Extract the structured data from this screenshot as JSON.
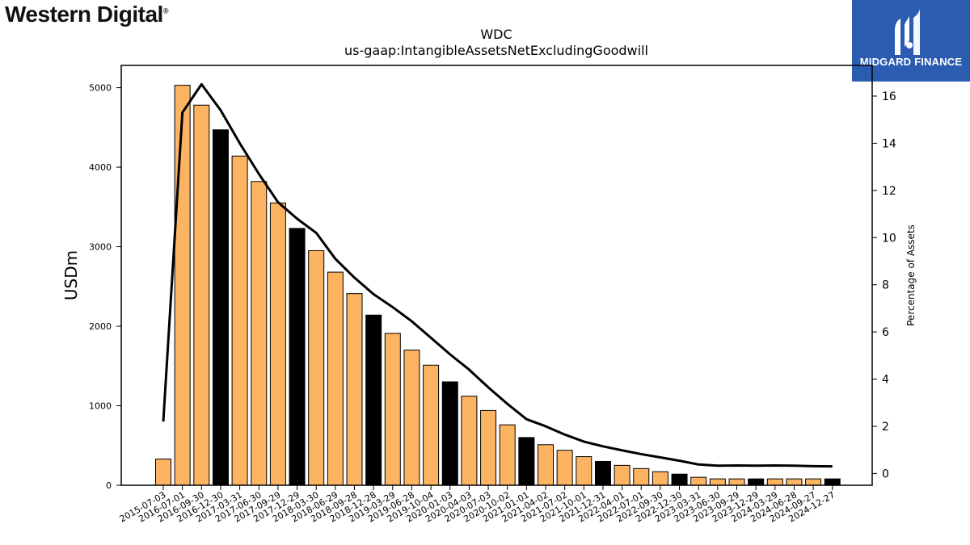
{
  "brand": {
    "name": "Western Digital",
    "reg": "®"
  },
  "badge": {
    "label": "MIDGARD FINANCE"
  },
  "chart_data": {
    "type": "bar",
    "title": "WDC",
    "subtitle": "us-gaap:IntangibleAssetsNetExcludingGoodwill",
    "ylabel": "USDm",
    "y2label": "Percentage of Assets",
    "ylim": [
      0,
      5280
    ],
    "y2lim": [
      -0.5,
      17.3
    ],
    "yticks": [
      0,
      1000,
      2000,
      3000,
      4000,
      5000
    ],
    "y2ticks": [
      0,
      2,
      4,
      6,
      8,
      10,
      12,
      14,
      16
    ],
    "colors": {
      "bar": "#fdb462",
      "bar_highlight": "#000000",
      "line": "#000000"
    },
    "categories": [
      "2015-07-03",
      "2016-07-01",
      "2016-09-30",
      "2016-12-30",
      "2017-03-31",
      "2017-06-30",
      "2017-09-29",
      "2017-12-29",
      "2018-03-30",
      "2018-06-29",
      "2018-09-28",
      "2018-12-28",
      "2019-03-29",
      "2019-06-28",
      "2019-10-04",
      "2020-01-03",
      "2020-04-03",
      "2020-07-03",
      "2020-10-02",
      "2021-01-01",
      "2021-04-02",
      "2021-07-02",
      "2021-10-01",
      "2021-12-31",
      "2022-04-01",
      "2022-07-01",
      "2022-09-30",
      "2022-12-30",
      "2023-03-31",
      "2023-06-30",
      "2023-09-29",
      "2023-12-29",
      "2024-03-29",
      "2024-06-28",
      "2024-09-27",
      "2024-12-27"
    ],
    "series": [
      {
        "type": "bar",
        "values": [
          330,
          5030,
          4780,
          4470,
          4140,
          3820,
          3550,
          3230,
          2950,
          2680,
          2410,
          2140,
          1910,
          1700,
          1510,
          1300,
          1120,
          940,
          760,
          600,
          510,
          440,
          360,
          300,
          250,
          210,
          170,
          140,
          100,
          80,
          80,
          80,
          80,
          80,
          80,
          80
        ],
        "highlight": [
          false,
          false,
          false,
          true,
          false,
          false,
          false,
          true,
          false,
          false,
          false,
          true,
          false,
          false,
          false,
          true,
          false,
          false,
          false,
          true,
          false,
          false,
          false,
          true,
          false,
          false,
          false,
          true,
          false,
          false,
          false,
          true,
          false,
          false,
          false,
          true
        ]
      },
      {
        "type": "line",
        "axis": "right",
        "values": [
          2.2,
          15.3,
          16.5,
          15.4,
          14.0,
          12.7,
          11.5,
          10.8,
          10.2,
          9.1,
          8.3,
          7.6,
          7.05,
          6.45,
          5.75,
          5.05,
          4.4,
          3.65,
          2.95,
          2.3,
          2.0,
          1.65,
          1.35,
          1.15,
          0.98,
          0.82,
          0.68,
          0.54,
          0.38,
          0.33,
          0.34,
          0.33,
          0.34,
          0.33,
          0.31,
          0.3
        ]
      }
    ]
  }
}
